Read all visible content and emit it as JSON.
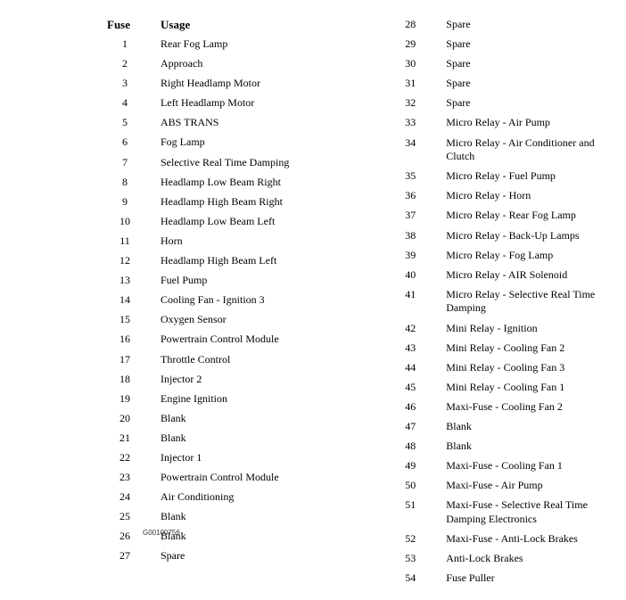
{
  "headers": {
    "fuse": "Fuse",
    "usage": "Usage"
  },
  "left_column": [
    {
      "num": "1",
      "usage": "Rear Fog Lamp"
    },
    {
      "num": "2",
      "usage": "Approach"
    },
    {
      "num": "3",
      "usage": "Right Headlamp Motor"
    },
    {
      "num": "4",
      "usage": "Left Headlamp Motor"
    },
    {
      "num": "5",
      "usage": "ABS TRANS"
    },
    {
      "num": "6",
      "usage": "Fog Lamp"
    },
    {
      "num": "7",
      "usage": "Selective Real Time Damping"
    },
    {
      "num": "8",
      "usage": "Headlamp Low Beam Right"
    },
    {
      "num": "9",
      "usage": "Headlamp High Beam Right"
    },
    {
      "num": "10",
      "usage": "Headlamp Low Beam Left"
    },
    {
      "num": "11",
      "usage": "Horn"
    },
    {
      "num": "12",
      "usage": "Headlamp High Beam Left"
    },
    {
      "num": "13",
      "usage": "Fuel Pump"
    },
    {
      "num": "14",
      "usage": "Cooling Fan - Ignition 3"
    },
    {
      "num": "15",
      "usage": "Oxygen Sensor"
    },
    {
      "num": "16",
      "usage": "Powertrain Control Module"
    },
    {
      "num": "17",
      "usage": "Throttle Control"
    },
    {
      "num": "18",
      "usage": "Injector 2"
    },
    {
      "num": "19",
      "usage": "Engine Ignition"
    },
    {
      "num": "20",
      "usage": "Blank"
    },
    {
      "num": "21",
      "usage": "Blank"
    },
    {
      "num": "22",
      "usage": "Injector 1"
    },
    {
      "num": "23",
      "usage": "Powertrain Control Module"
    },
    {
      "num": "24",
      "usage": "Air Conditioning"
    },
    {
      "num": "25",
      "usage": "Blank"
    },
    {
      "num": "26",
      "usage": "Blank"
    },
    {
      "num": "27",
      "usage": "Spare"
    }
  ],
  "right_column": [
    {
      "num": "28",
      "usage": "Spare"
    },
    {
      "num": "29",
      "usage": "Spare"
    },
    {
      "num": "30",
      "usage": "Spare"
    },
    {
      "num": "31",
      "usage": "Spare"
    },
    {
      "num": "32",
      "usage": "Spare"
    },
    {
      "num": "33",
      "usage": "Micro Relay - Air Pump"
    },
    {
      "num": "34",
      "usage": "Micro Relay - Air Conditioner and Clutch"
    },
    {
      "num": "35",
      "usage": "Micro Relay - Fuel Pump"
    },
    {
      "num": "36",
      "usage": "Micro Relay - Horn"
    },
    {
      "num": "37",
      "usage": "Micro Relay - Rear Fog Lamp"
    },
    {
      "num": "38",
      "usage": "Micro Relay - Back-Up Lamps"
    },
    {
      "num": "39",
      "usage": "Micro Relay - Fog Lamp"
    },
    {
      "num": "40",
      "usage": "Micro Relay - AIR Solenoid"
    },
    {
      "num": "41",
      "usage": "Micro Relay - Selective Real Time Damping"
    },
    {
      "num": "42",
      "usage": "Mini Relay - Ignition"
    },
    {
      "num": "43",
      "usage": "Mini Relay - Cooling Fan 2"
    },
    {
      "num": "44",
      "usage": "Mini Relay - Cooling Fan 3"
    },
    {
      "num": "45",
      "usage": "Mini Relay - Cooling Fan 1"
    },
    {
      "num": "46",
      "usage": "Maxi-Fuse - Cooling Fan 2"
    },
    {
      "num": "47",
      "usage": "Blank"
    },
    {
      "num": "48",
      "usage": "Blank"
    },
    {
      "num": "49",
      "usage": "Maxi-Fuse - Cooling Fan 1"
    },
    {
      "num": "50",
      "usage": "Maxi-Fuse - Air Pump"
    },
    {
      "num": "51",
      "usage": "Maxi-Fuse - Selective Real Time Damping Electronics"
    },
    {
      "num": "52",
      "usage": "Maxi-Fuse - Anti-Lock Brakes"
    },
    {
      "num": "53",
      "usage": "Anti-Lock Brakes"
    },
    {
      "num": "54",
      "usage": "Fuse Puller"
    }
  ],
  "footer_id": "G00100756",
  "style": {
    "background_color": "#ffffff",
    "text_color": "#000000",
    "font_family": "Times New Roman",
    "header_font_size": 13,
    "row_font_size": 12,
    "footer_font_size": 8
  }
}
